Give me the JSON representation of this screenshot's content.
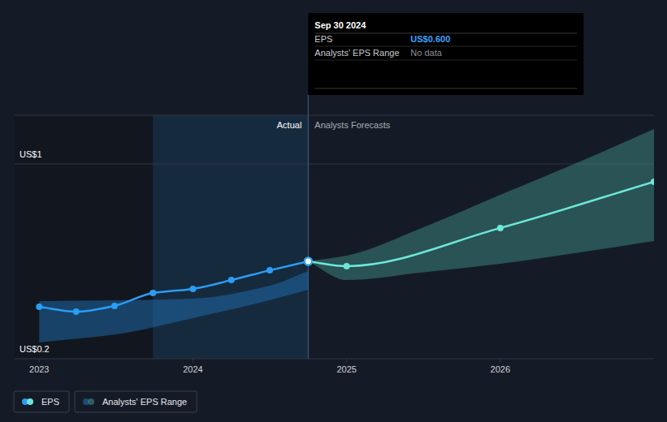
{
  "chart_data": {
    "type": "line",
    "xlim": [
      2022.84,
      2027
    ],
    "xticks": [
      2023,
      2024,
      2025,
      2026
    ],
    "ylim": [
      0.2,
      1.2
    ],
    "yticks": [
      {
        "value": 0.2,
        "label": "US$0.2"
      },
      {
        "value": 1,
        "label": "US$1"
      }
    ],
    "grid": true,
    "series": [
      {
        "name": "EPS",
        "color": "#2a9df4",
        "marker": "circle",
        "x": [
          2023,
          2023.24,
          2023.49,
          2023.74,
          2024,
          2024.25,
          2024.5,
          2024.75
        ],
        "values": [
          0.413,
          0.393,
          0.417,
          0.47,
          0.487,
          0.523,
          0.563,
          0.6
        ]
      },
      {
        "name": "EPS",
        "color": "#6ee7d8",
        "marker": "circle",
        "x": [
          2024.75,
          2025,
          2026,
          2027
        ],
        "values": [
          0.6,
          0.58,
          0.737,
          0.927
        ]
      }
    ],
    "ranges": [
      {
        "name": "Analysts' EPS Range",
        "color": "#1e6db0",
        "x": [
          2023,
          2023.5,
          2024,
          2024.5,
          2024.75
        ],
        "low": [
          0.267,
          0.3,
          0.367,
          0.44,
          0.483
        ],
        "high": [
          0.437,
          0.44,
          0.447,
          0.5,
          0.56
        ]
      },
      {
        "name": "Analysts' EPS Range",
        "color": "#3d8c84",
        "x": [
          2024.75,
          2025,
          2025.5,
          2026,
          2026.5,
          2027
        ],
        "low": [
          0.6,
          0.523,
          0.555,
          0.59,
          0.635,
          0.683
        ],
        "high": [
          0.6,
          0.623,
          0.74,
          0.873,
          1.005,
          1.143
        ]
      }
    ],
    "highlight": {
      "x": [
        2023.74,
        2024.75
      ]
    },
    "annotations": [
      {
        "text": "Actual",
        "x": 2024.75
      },
      {
        "text": "Analysts Forecasts",
        "x": 2024.75
      }
    ],
    "tooltip": {
      "x": 2024.75,
      "title": "Sep 30 2024",
      "rows": [
        {
          "label": "EPS",
          "value": "US$0.600"
        },
        {
          "label": "Analysts' EPS Range",
          "value": "No data"
        }
      ]
    }
  }
}
